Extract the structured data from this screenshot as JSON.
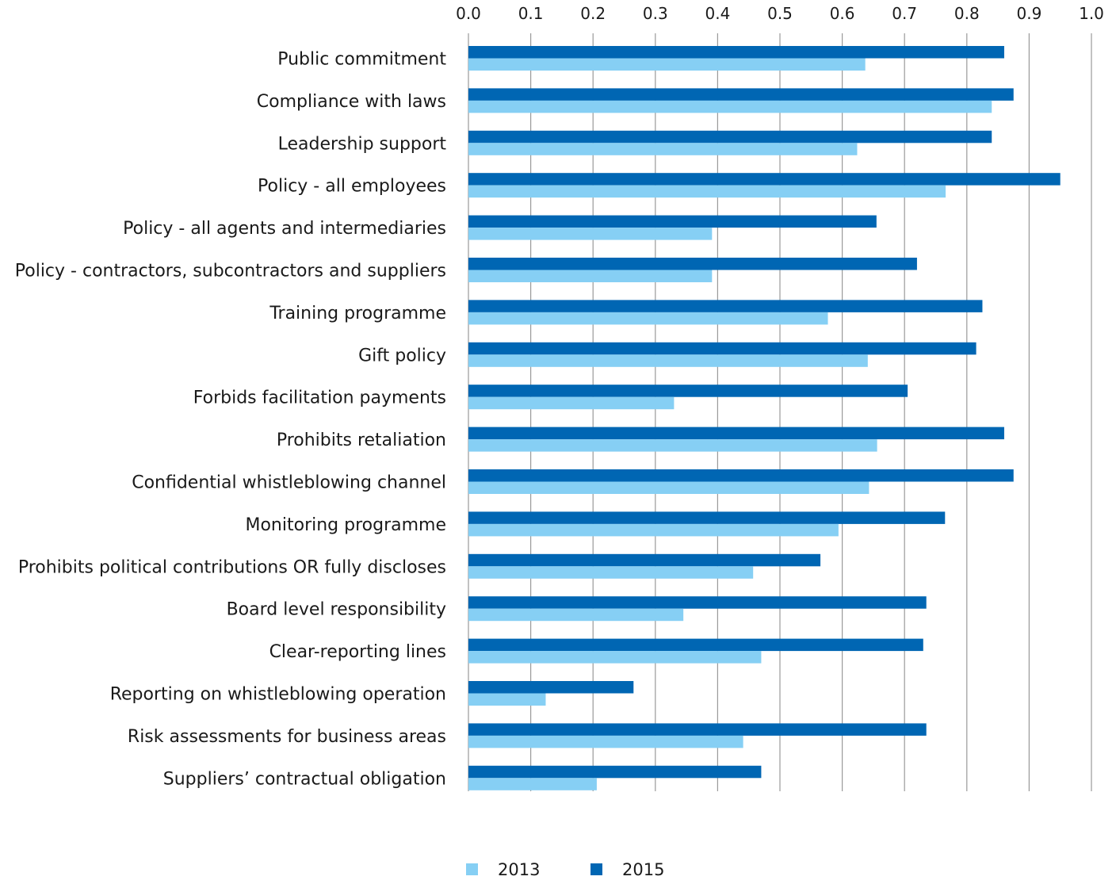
{
  "chart_data": {
    "type": "bar",
    "orientation": "horizontal",
    "categories": [
      "Public commitment",
      "Compliance with laws",
      "Leadership support",
      "Policy - all employees",
      "Policy - all agents and intermediaries",
      "Policy - contractors, subcontractors and suppliers",
      "Training programme",
      "Gift policy",
      "Forbids facilitation payments",
      "Prohibits retaliation",
      "Confidential whistleblowing channel",
      "Monitoring programme",
      "Prohibits political contributions OR fully discloses",
      "Board level responsibility",
      "Clear-reporting lines",
      "Reporting on whistleblowing operation",
      "Risk assessments for business areas",
      "Suppliers’ contractual obligation"
    ],
    "series": [
      {
        "name": "2015",
        "color": "#0066b3",
        "values": [
          0.86,
          0.875,
          0.84,
          0.95,
          0.655,
          0.72,
          0.825,
          0.815,
          0.705,
          0.86,
          0.875,
          0.765,
          0.565,
          0.735,
          0.73,
          0.265,
          0.735,
          0.47
        ]
      },
      {
        "name": "2013",
        "color": "#86cff4",
        "values": [
          0.637,
          0.84,
          0.624,
          0.766,
          0.391,
          0.391,
          0.577,
          0.641,
          0.33,
          0.656,
          0.643,
          0.594,
          0.457,
          0.345,
          0.47,
          0.124,
          0.441,
          0.206
        ]
      }
    ],
    "xlim": [
      0,
      1.0
    ],
    "ticks": [
      "0.0",
      "0.1",
      "0.2",
      "0.3",
      "0.4",
      "0.5",
      "0.6",
      "0.7",
      "0.8",
      "0.9",
      "1.0"
    ],
    "tick_values": [
      0,
      0.1,
      0.2,
      0.3,
      0.4,
      0.5,
      0.6,
      0.7,
      0.8,
      0.9,
      1.0
    ],
    "xaxis_position": "top",
    "grid": true,
    "legend": {
      "placement": "bottom-center",
      "entries": [
        "2013",
        "2015"
      ]
    },
    "title": "",
    "xlabel": "",
    "ylabel": ""
  }
}
